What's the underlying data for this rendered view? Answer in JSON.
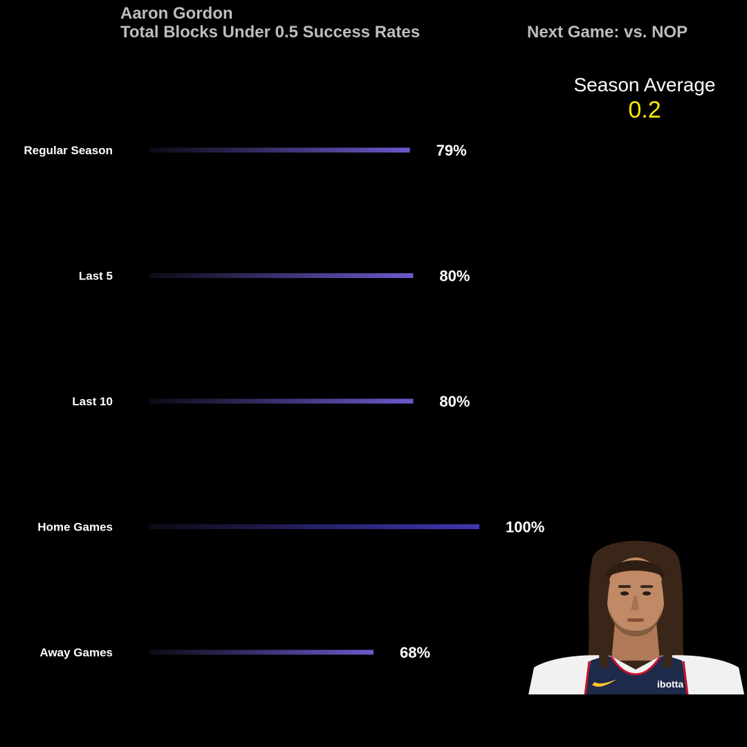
{
  "header": {
    "player_name": "Aaron Gordon",
    "subtitle": "Total Blocks Under 0.5 Success Rates",
    "next_game": "Next Game: vs. NOP"
  },
  "season_average": {
    "label": "Season Average",
    "value": "0.2"
  },
  "portrait": {
    "jersey_sponsor": "ibotta"
  },
  "colors": {
    "background": "#000000",
    "title_text": "#bdbdbd",
    "season_average_value": "#ffeb00",
    "bar_start": "#0c0a14",
    "bar_end": "#6a5acd",
    "bar_end_full": "#3f37b5"
  },
  "chart_data": {
    "type": "bar",
    "orientation": "horizontal",
    "categories": [
      "Regular Season",
      "Last 5",
      "Last 10",
      "Home Games",
      "Away Games"
    ],
    "values": [
      79,
      80,
      80,
      100,
      68
    ],
    "value_labels": [
      "79%",
      "80%",
      "80%",
      "100%",
      "68%"
    ],
    "xlim": [
      0,
      100
    ],
    "grid": false,
    "legend": "none"
  }
}
